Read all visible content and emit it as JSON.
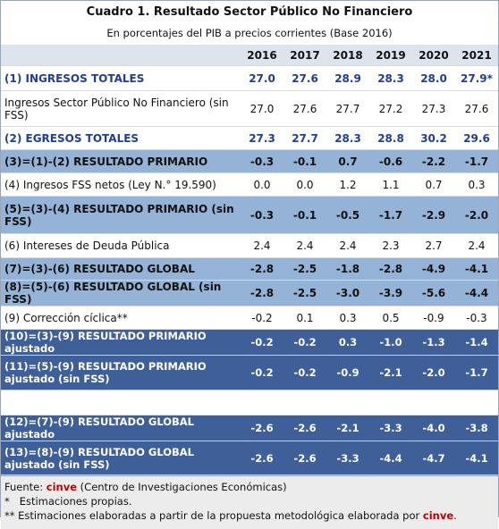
{
  "header": {
    "title": "Cuadro 1. Resultado Sector Público No Financiero",
    "subtitle": "En porcentajes del PIB a precios corrientes (Base 2016)"
  },
  "table": {
    "columns": [
      "2016",
      "2017",
      "2018",
      "2019",
      "2020",
      "2021"
    ],
    "rows": [
      {
        "label": "(1) INGRESOS TOTALES",
        "values": [
          "27.0",
          "27.6",
          "28.9",
          "28.3",
          "28.0",
          "27.9*"
        ]
      },
      {
        "label": "Ingresos Sector Público No Financiero (sin FSS)",
        "values": [
          "27.0",
          "27.6",
          "27.7",
          "27.2",
          "27.3",
          "27.6"
        ]
      },
      {
        "label": "(2) EGRESOS TOTALES",
        "values": [
          "27.3",
          "27.7",
          "28.3",
          "28.8",
          "30.2",
          "29.6"
        ]
      },
      {
        "label": "(3)=(1)-(2) RESULTADO PRIMARIO",
        "values": [
          "-0.3",
          "-0.1",
          "0.7",
          "-0.6",
          "-2.2",
          "-1.7"
        ]
      },
      {
        "label": "(4) Ingresos FSS netos (Ley N.° 19.590)",
        "values": [
          "0.0",
          "0.0",
          "1.2",
          "1.1",
          "0.7",
          "0.3"
        ]
      },
      {
        "label": "(5)=(3)-(4) RESULTADO PRIMARIO (sin FSS)",
        "values": [
          "-0.3",
          "-0.1",
          "-0.5",
          "-1.7",
          "-2.9",
          "-2.0"
        ]
      },
      {
        "label": "(6) Intereses de Deuda Pública",
        "values": [
          "2.4",
          "2.4",
          "2.4",
          "2.3",
          "2.7",
          "2.4"
        ]
      },
      {
        "label": "(7)=(3)-(6) RESULTADO GLOBAL",
        "values": [
          "-2.8",
          "-2.5",
          "-1.8",
          "-2.8",
          "-4.9",
          "-4.1"
        ]
      },
      {
        "label": "(8)=(5)-(6) RESULTADO GLOBAL (sin FSS)",
        "values": [
          "-2.8",
          "-2.5",
          "-3.0",
          "-3.9",
          "-5.6",
          "-4.4"
        ]
      },
      {
        "label": "(9) Corrección cíclica**",
        "values": [
          "-0.2",
          "0.1",
          "0.3",
          "0.5",
          "-0.9",
          "-0.3"
        ]
      },
      {
        "label": "(10)=(3)-(9) RESULTADO PRIMARIO ajustado",
        "values": [
          "-0.2",
          "-0.2",
          "0.3",
          "-1.0",
          "-1.3",
          "-1.4"
        ]
      },
      {
        "label": "(11)=(5)-(9) RESULTADO PRIMARIO ajustado (sin FSS)",
        "values": [
          "-0.2",
          "-0.2",
          "-0.9",
          "-2.1",
          "-2.0",
          "-1.7"
        ]
      },
      {
        "label": "(12)=(7)-(9) RESULTADO GLOBAL  ajustado",
        "values": [
          "-2.6",
          "-2.6",
          "-2.1",
          "-3.3",
          "-4.0",
          "-3.8"
        ]
      },
      {
        "label": "(13)=(8)-(9) RESULTADO GLOBAL ajustado (sin FSS)",
        "values": [
          "-2.6",
          "-2.6",
          "-3.3",
          "-4.4",
          "-4.7",
          "-4.1"
        ]
      }
    ]
  },
  "footer": {
    "source_prefix": "Fuente: ",
    "source_org": "cinve",
    "source_suffix": " (Centro de Investigaciones Económicas)",
    "note1": "*   Estimaciones propias.",
    "note2_prefix": "** Estimaciones elaboradas a partir de la propuesta metodológica elaborada por ",
    "note2_org": "cinve",
    "note2_suffix": "."
  }
}
